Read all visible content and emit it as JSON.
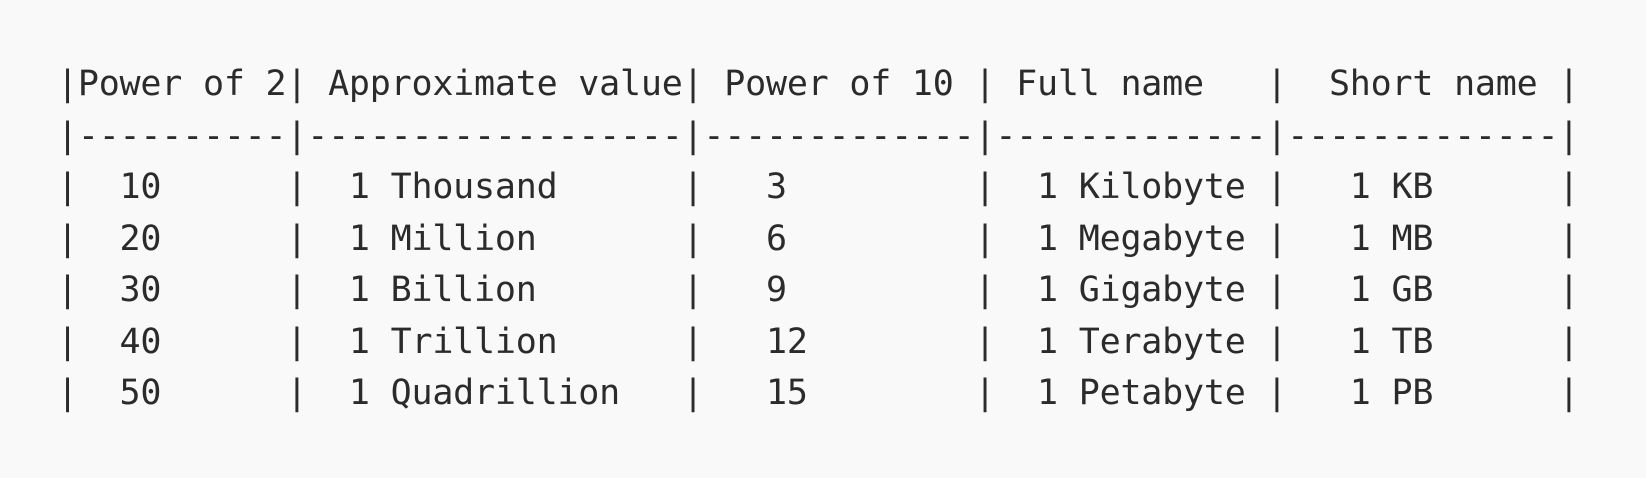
{
  "table": {
    "header": "|Power of 2| Approximate value| Power of 10 | Full name   |  Short name |",
    "separator": "|----------|------------------|-------------|-------------|-------------|",
    "rows": [
      "|  10      |  1 Thousand      |   3         |  1 Kilobyte |   1 KB      |",
      "|  20      |  1 Million       |   6         |  1 Megabyte |   1 MB      |",
      "|  30      |  1 Billion       |   9         |  1 Gigabyte |   1 GB      |",
      "|  40      |  1 Trillion      |   12        |  1 Terabyte |   1 TB      |",
      "|  50      |  1 Quadrillion   |   15        |  1 Petabyte |   1 PB      |"
    ]
  }
}
